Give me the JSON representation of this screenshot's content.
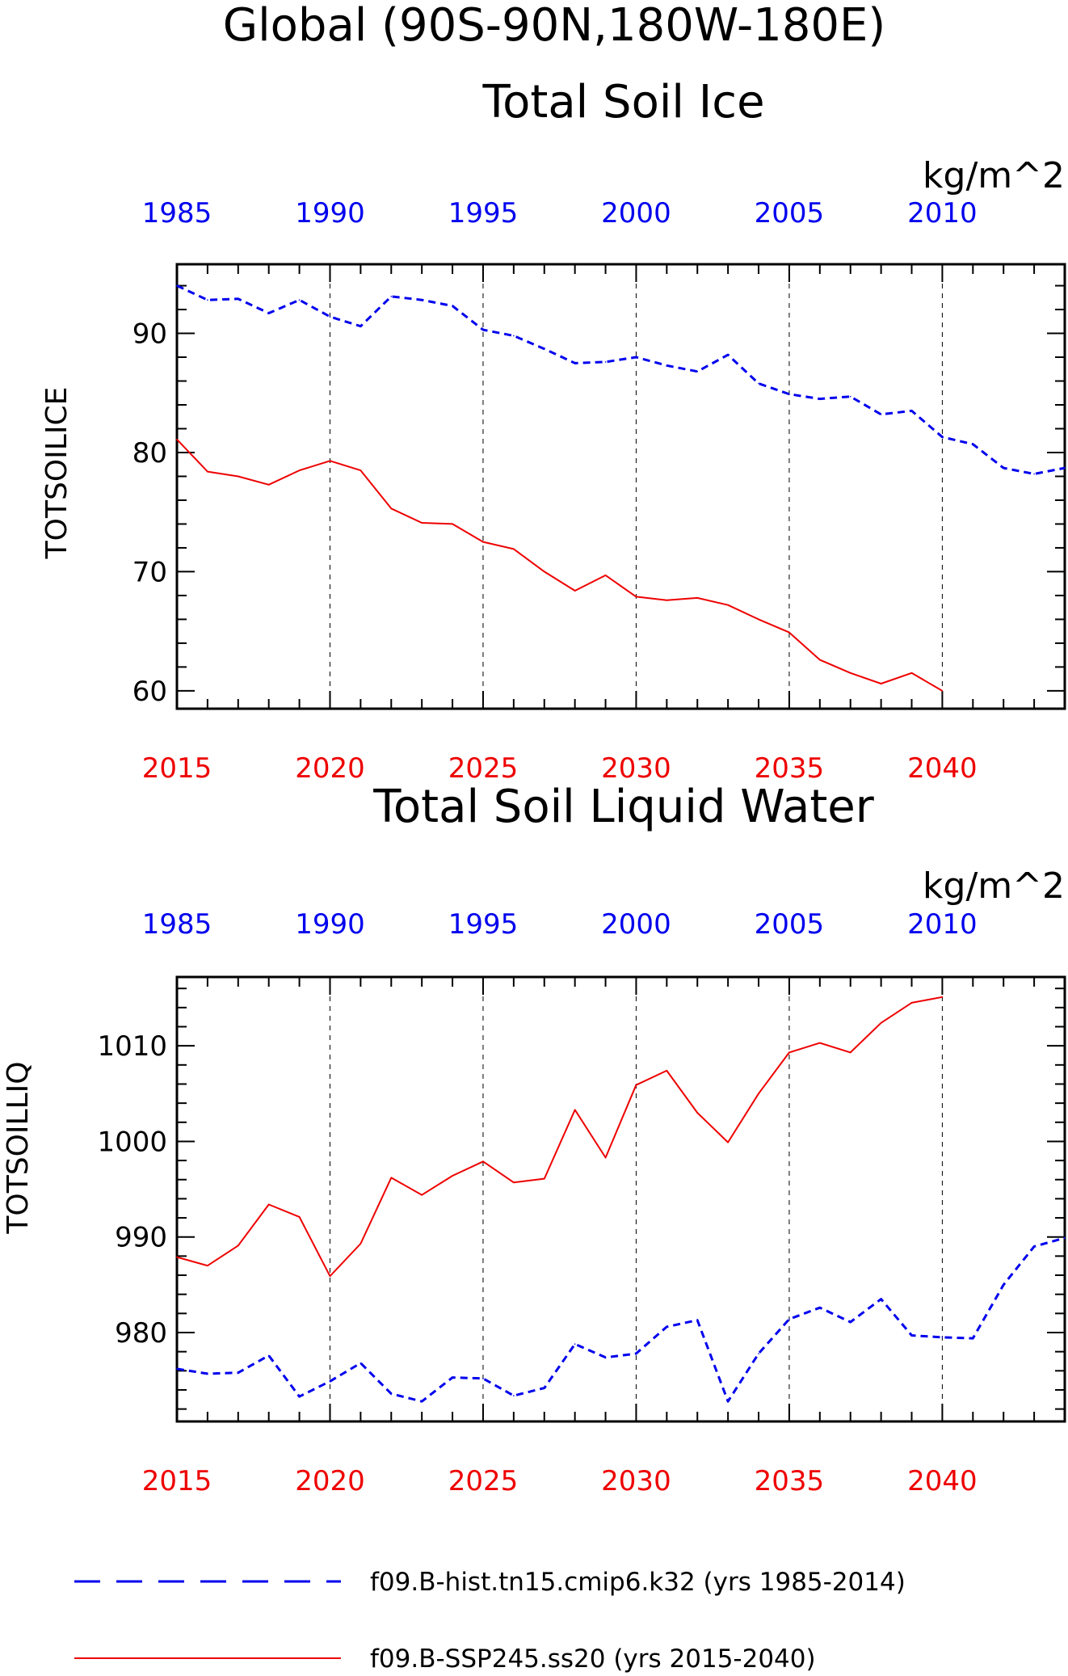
{
  "page": {
    "title_line1": "Global (90S-90N,180W-180E)"
  },
  "colors": {
    "hist": "#0000ee",
    "ssp": "#ee0000",
    "axis": "#000000"
  },
  "chart_data": [
    {
      "type": "line",
      "title": "Total Soil Ice",
      "units": "kg/m^2",
      "ylabel": "TOTSOILICE",
      "x_bottom": {
        "label_color": "ssp",
        "ticks": [
          2015,
          2020,
          2025,
          2030,
          2035,
          2040
        ],
        "range": [
          2015,
          2044
        ]
      },
      "x_top": {
        "label_color": "hist",
        "ticks": [
          1985,
          1990,
          1995,
          2000,
          2005,
          2010
        ],
        "range": [
          1985,
          2014
        ]
      },
      "ylim": [
        58.5,
        95.8
      ],
      "yticks": [
        60,
        70,
        80,
        90
      ],
      "vgrid_x": [
        2020,
        2025,
        2030,
        2035,
        2040
      ],
      "series": [
        {
          "name": "f09.B-hist.tn15.cmip6.k32 (yrs 1985-2014)",
          "style": "dashed",
          "color": "hist",
          "axis": "top",
          "x": [
            1985,
            1986,
            1987,
            1988,
            1989,
            1990,
            1991,
            1992,
            1993,
            1994,
            1995,
            1996,
            1997,
            1998,
            1999,
            2000,
            2001,
            2002,
            2003,
            2004,
            2005,
            2006,
            2007,
            2008,
            2009,
            2010,
            2011,
            2012,
            2013,
            2014
          ],
          "values": [
            94.0,
            92.8,
            92.9,
            91.7,
            92.8,
            91.4,
            90.6,
            93.1,
            92.8,
            92.3,
            90.3,
            89.8,
            88.7,
            87.5,
            87.6,
            88.0,
            87.3,
            86.8,
            88.2,
            85.8,
            84.9,
            84.5,
            84.7,
            83.2,
            83.5,
            81.3,
            80.7,
            78.7,
            78.2,
            78.7
          ]
        },
        {
          "name": "f09.B-SSP245.ss20 (yrs 2015-2040)",
          "style": "solid",
          "color": "ssp",
          "axis": "bottom",
          "x": [
            2015,
            2016,
            2017,
            2018,
            2019,
            2020,
            2021,
            2022,
            2023,
            2024,
            2025,
            2026,
            2027,
            2028,
            2029,
            2030,
            2031,
            2032,
            2033,
            2034,
            2035,
            2036,
            2037,
            2038,
            2039,
            2040
          ],
          "values": [
            81.1,
            78.4,
            78.0,
            77.3,
            78.5,
            79.3,
            78.5,
            75.3,
            74.1,
            74.0,
            72.5,
            71.9,
            70.0,
            68.4,
            69.7,
            67.9,
            67.6,
            67.8,
            67.2,
            66.0,
            64.9,
            62.6,
            61.5,
            60.6,
            61.5,
            60.0
          ]
        }
      ]
    },
    {
      "type": "line",
      "title": "Total Soil Liquid Water",
      "units": "kg/m^2",
      "ylabel": "TOTSOILLIQ",
      "x_bottom": {
        "label_color": "ssp",
        "ticks": [
          2015,
          2020,
          2025,
          2030,
          2035,
          2040
        ],
        "range": [
          2015,
          2044
        ]
      },
      "x_top": {
        "label_color": "hist",
        "ticks": [
          1985,
          1990,
          1995,
          2000,
          2005,
          2010
        ],
        "range": [
          1985,
          2014
        ]
      },
      "ylim": [
        970.7,
        1017.2
      ],
      "yticks": [
        980,
        990,
        1000,
        1010
      ],
      "vgrid_x": [
        2020,
        2025,
        2030,
        2035,
        2040
      ],
      "series": [
        {
          "name": "f09.B-hist.tn15.cmip6.k32 (yrs 1985-2014)",
          "style": "dashed",
          "color": "hist",
          "axis": "top",
          "x": [
            1985,
            1986,
            1987,
            1988,
            1989,
            1990,
            1991,
            1992,
            1993,
            1994,
            1995,
            1996,
            1997,
            1998,
            1999,
            2000,
            2001,
            2002,
            2003,
            2004,
            2005,
            2006,
            2007,
            2008,
            2009,
            2010,
            2011,
            2012,
            2013,
            2014
          ],
          "values": [
            976.2,
            975.7,
            975.8,
            977.6,
            973.3,
            974.9,
            976.8,
            973.6,
            972.8,
            975.3,
            975.2,
            973.4,
            974.2,
            978.8,
            977.4,
            977.8,
            980.6,
            981.3,
            972.8,
            977.8,
            981.4,
            982.6,
            981.1,
            983.5,
            979.7,
            979.5,
            979.4,
            985.0,
            989.0,
            989.9
          ]
        },
        {
          "name": "f09.B-SSP245.ss20 (yrs 2015-2040)",
          "style": "solid",
          "color": "ssp",
          "axis": "bottom",
          "x": [
            2015,
            2016,
            2017,
            2018,
            2019,
            2020,
            2021,
            2022,
            2023,
            2024,
            2025,
            2026,
            2027,
            2028,
            2029,
            2030,
            2031,
            2032,
            2033,
            2034,
            2035,
            2036,
            2037,
            2038,
            2039,
            2040
          ],
          "values": [
            987.9,
            987.0,
            989.1,
            993.4,
            992.1,
            985.9,
            989.3,
            996.2,
            994.4,
            996.4,
            997.9,
            995.7,
            996.1,
            1003.3,
            998.3,
            1005.9,
            1007.4,
            1003.0,
            999.9,
            1005.0,
            1009.3,
            1010.3,
            1009.3,
            1012.4,
            1014.5,
            1015.1
          ]
        }
      ]
    }
  ],
  "legend": [
    {
      "label": "f09.B-hist.tn15.cmip6.k32 (yrs 1985-2014)",
      "style": "dashed",
      "color": "hist"
    },
    {
      "label": "f09.B-SSP245.ss20 (yrs 2015-2040)",
      "style": "solid",
      "color": "ssp"
    }
  ]
}
